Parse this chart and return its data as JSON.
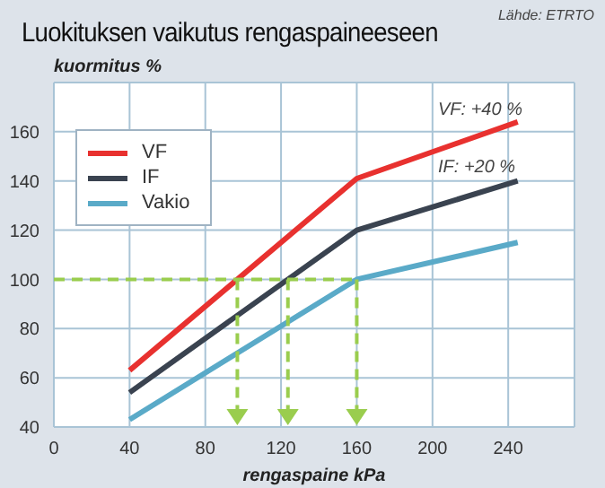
{
  "chart_data": {
    "type": "line",
    "title": "Luokituksen vaikutus rengaspaineeseen",
    "xlabel": "rengaspaine kPa",
    "ylabel": "kuormitus %",
    "annotations": [
      "Lähde: ETRTO",
      "VF: +40 %",
      "IF: +20 %"
    ],
    "series": [
      {
        "name": "VF",
        "color": "#e8312f",
        "x": [
          40,
          160,
          245
        ],
        "values": [
          63,
          141,
          164
        ]
      },
      {
        "name": "IF",
        "color": "#3a4350",
        "x": [
          40,
          160,
          245
        ],
        "values": [
          54,
          120,
          140
        ]
      },
      {
        "name": "Vakio",
        "color": "#5aaac8",
        "x": [
          40,
          160,
          245
        ],
        "values": [
          43,
          100,
          115
        ]
      },
      {
        "color": "#9acd4e",
        "line_style": "dashed",
        "x": [
          0,
          160
        ],
        "values": [
          100,
          100
        ]
      }
    ],
    "xlim": [
      0,
      275
    ],
    "xticks": [
      0,
      40,
      80,
      120,
      160,
      200,
      240
    ],
    "ylim": [
      40,
      180
    ],
    "yticks": [
      40,
      60,
      80,
      100,
      120,
      140,
      160
    ],
    "grid": true,
    "legend": "top left",
    "marker": "none",
    "line_style": "solid"
  }
}
